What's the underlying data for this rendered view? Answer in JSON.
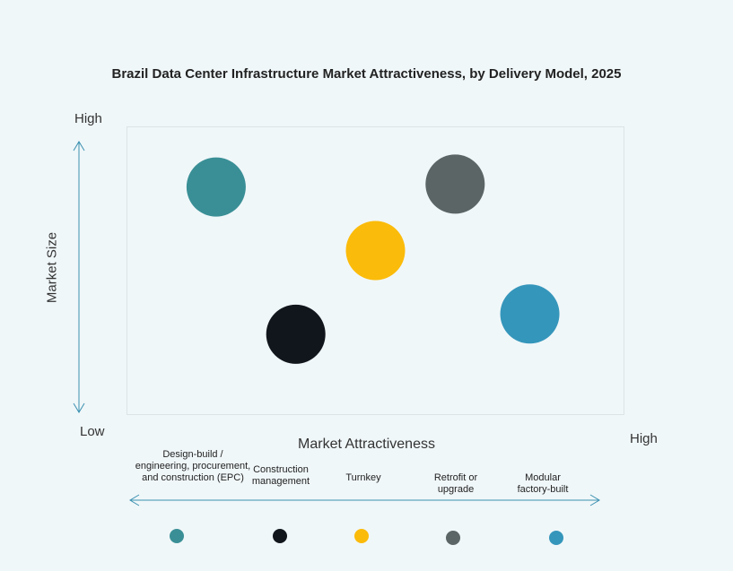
{
  "chart_data": {
    "type": "scatter",
    "title": "Brazil Data Center Infrastructure Market Attractiveness,  by Delivery Model, 2025",
    "xlabel": "Market Attractiveness",
    "ylabel": "Market Size",
    "x_low_label": "Low",
    "x_high_label": "High",
    "y_high_label": "High",
    "xlim": [
      0,
      10
    ],
    "ylim": [
      0,
      10
    ],
    "grid": false,
    "legend": "bottom",
    "series": [
      {
        "name": "Design-build / engineering, procurement, and construction (EPC)",
        "x": 1.8,
        "y": 7.9,
        "color": "#3a8f96"
      },
      {
        "name": "Construction management",
        "x": 3.4,
        "y": 2.8,
        "color": "#11161d"
      },
      {
        "name": "Turnkey",
        "x": 5.0,
        "y": 5.7,
        "color": "#fbbb0a"
      },
      {
        "name": "Retrofit or upgrade",
        "x": 6.6,
        "y": 8.0,
        "color": "#5b6565"
      },
      {
        "name": "Modular factory-built",
        "x": 8.1,
        "y": 3.5,
        "color": "#3596bb"
      }
    ]
  }
}
